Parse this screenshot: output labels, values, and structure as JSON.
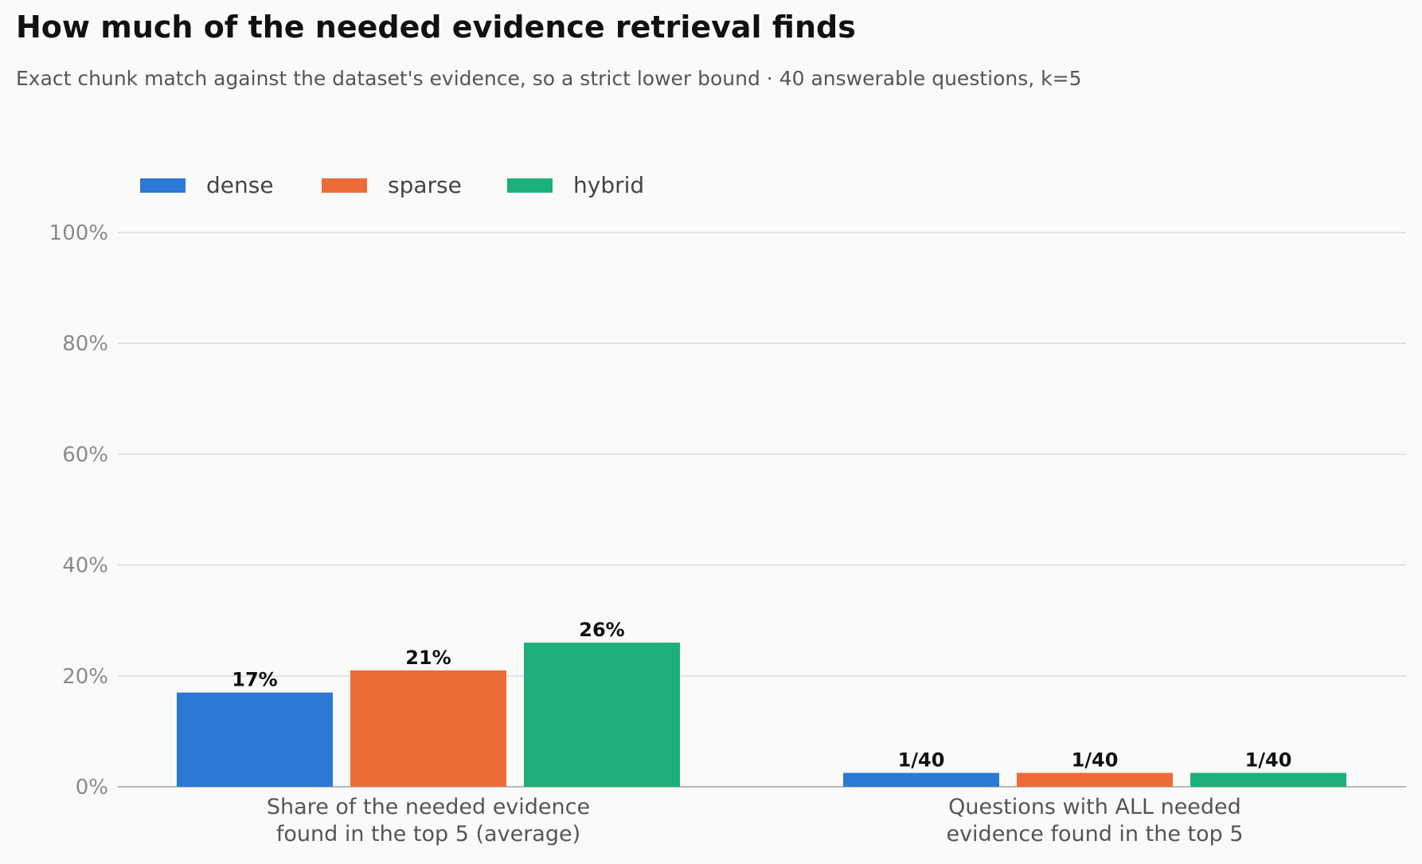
{
  "title": "How much of the needed evidence retrieval finds",
  "subtitle": "Exact chunk match against the dataset's evidence, so a strict lower bound · 40 answerable questions, k=5",
  "colors": {
    "dense": "#2c78d5",
    "sparse": "#ec6b37",
    "hybrid": "#1db07b"
  },
  "chart_data": {
    "type": "bar",
    "title": "How much of the needed evidence retrieval finds",
    "subtitle": "Exact chunk match against the dataset's evidence, so a strict lower bound · 40 answerable questions, k=5",
    "categories": [
      [
        "Share of the needed evidence",
        "found in the top 5 (average)"
      ],
      [
        "Questions with ALL needed",
        "evidence found in the top 5"
      ]
    ],
    "series": [
      {
        "name": "dense",
        "color": "#2c78d5",
        "values": [
          17,
          2.5
        ],
        "labels": [
          "17%",
          "1/40"
        ]
      },
      {
        "name": "sparse",
        "color": "#ec6b37",
        "values": [
          21,
          2.5
        ],
        "labels": [
          "21%",
          "1/40"
        ]
      },
      {
        "name": "hybrid",
        "color": "#1db07b",
        "values": [
          26,
          2.5
        ],
        "labels": [
          "26%",
          "1/40"
        ]
      }
    ],
    "yticks": [
      "0%",
      "20%",
      "40%",
      "60%",
      "80%",
      "100%"
    ],
    "ylim": [
      0,
      100
    ],
    "grid": true,
    "legend": "top-left"
  }
}
